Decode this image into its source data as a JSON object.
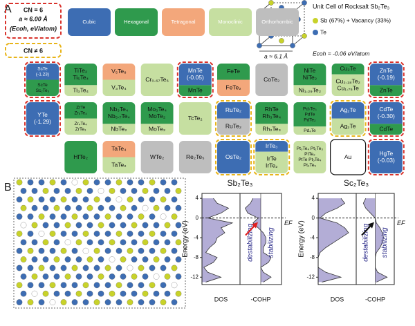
{
  "panel_a": {
    "label": "A",
    "key": {
      "cn6": [
        "CN = 6",
        "a ≈ 6.00 Å",
        "(Ecoh, eV/atom)"
      ],
      "cn_not6": "CN ≠ 6",
      "cn6_color": "#d9322b",
      "cn_not6_color": "#e8b418"
    },
    "structure_legend": [
      {
        "name": "Cubic",
        "color": "#3d6db3"
      },
      {
        "name": "Hexagonal",
        "color": "#2f9a4d"
      },
      {
        "name": "Tetragonal",
        "color": "#f3a77b"
      },
      {
        "name": "Monoclinic",
        "color": "#c6dfa1"
      },
      {
        "name": "Orthorhombic",
        "color": "#bebebe"
      }
    ],
    "unit_cell": {
      "title": "Unit Cell of Rocksalt Sb₂Te₃",
      "sb_label": "Sb (67%) + Vacancy (33%)",
      "sb_color": "#c8d22a",
      "te_label": "Te",
      "te_color": "#3d6db3",
      "lattice": "a ≈ 6.1 Å",
      "ecoh": "Ecoh = -0.06 eV/atom"
    },
    "rows": [
      [
        {
          "top": {
            "color": "#3d6db3",
            "lines": [
              "ScTe",
              "(-1.23)"
            ]
          },
          "bottom": {
            "color": "#2f9a4d",
            "lines": [
              "ScTe",
              "Sc₂Te₃"
            ]
          },
          "border": "#d9322b",
          "border_style": "dashed"
        },
        {
          "top": {
            "color": "#2f9a4d",
            "lines": [
              "TiTe₂",
              "Ti₅Te₄"
            ]
          },
          "bottom": {
            "color": "#c6dfa1",
            "lines": [
              "Ti₃Te₄"
            ]
          }
        },
        {
          "top": {
            "color": "#f3a77b",
            "lines": [
              "V₅Te₈"
            ]
          },
          "bottom": {
            "color": "#c6dfa1",
            "lines": [
              "V₃Te₄"
            ]
          }
        },
        {
          "top": {
            "color": "#c6dfa1",
            "lines": [
              "Cr₀.₆₇Te₆"
            ]
          }
        },
        {
          "top": {
            "color": "#3d6db3",
            "lines": [
              "MnTe",
              "(-0.05)"
            ]
          },
          "bottom": {
            "color": "#2f9a4d",
            "lines": [
              "MnTe"
            ]
          },
          "border": "#d9322b",
          "border_style": "dashed"
        },
        {
          "top": {
            "color": "#2f9a4d",
            "lines": [
              "FeTe"
            ]
          },
          "bottom": {
            "color": "#f3a77b",
            "lines": [
              "FeTe₂"
            ]
          }
        },
        {
          "top": {
            "color": "#bebebe",
            "lines": [
              "CoTe₂"
            ]
          }
        },
        {
          "top": {
            "color": "#2f9a4d",
            "lines": [
              "NiTe",
              "NiTe₂"
            ]
          },
          "bottom": {
            "color": "#c6dfa1",
            "lines": [
              "Ni₁.₂₉Te₂"
            ]
          }
        },
        {
          "top": {
            "color": "#2f9a4d",
            "lines": [
              "Cu₂Te"
            ]
          },
          "bottom": {
            "color": "#c6dfa1",
            "lines": [
              "Cu₃.₁₈Te₂",
              "Cu₁.₇₅Te"
            ]
          }
        },
        {
          "top": {
            "color": "#3d6db3",
            "lines": [
              "ZnTe",
              "(-0.19)"
            ]
          },
          "bottom": {
            "color": "#2f9a4d",
            "lines": [
              "ZnTe"
            ]
          },
          "border": "#d9322b",
          "border_style": "dashed"
        }
      ],
      [
        {
          "top": {
            "color": "#3d6db3",
            "lines": [
              "YTe",
              "(-1.29)"
            ]
          },
          "border": "#d9322b",
          "border_style": "dashed"
        },
        {
          "top": {
            "color": "#2f9a4d",
            "lines": [
              "ZrTe",
              "Zr₅Te₄"
            ]
          },
          "bottom": {
            "color": "#c6dfa1",
            "lines": [
              "Zr₄Te₄",
              "ZrTe₃"
            ]
          }
        },
        {
          "top": {
            "color": "#2f9a4d",
            "lines": [
              "Nb₃Te₄",
              "Nb₅.₇Te₄"
            ]
          },
          "bottom": {
            "color": "#c6dfa1",
            "lines": [
              "NbTe₂"
            ]
          }
        },
        {
          "top": {
            "color": "#2f9a4d",
            "lines": [
              "Mo₃Te₄",
              "MoTe₂"
            ]
          },
          "bottom": {
            "color": "#c6dfa1",
            "lines": [
              "MoTe₂"
            ]
          }
        },
        {
          "top": {
            "color": "#c6dfa1",
            "lines": [
              "TcTe₂"
            ]
          }
        },
        {
          "top": {
            "color": "#3d6db3",
            "lines": [
              "RuTe₂"
            ]
          },
          "bottom": {
            "color": "#bebebe",
            "lines": [
              "RuTe₂"
            ]
          },
          "border": "#e8b418",
          "border_style": "dashed"
        },
        {
          "top": {
            "color": "#2f9a4d",
            "lines": [
              "RhTe",
              "Rh₃Te₄"
            ]
          },
          "bottom": {
            "color": "#c6dfa1",
            "lines": [
              "Rh₂Te₃"
            ]
          }
        },
        {
          "top": {
            "color": "#2f9a4d",
            "lines": [
              "Pd₇Te₃",
              "PdTe",
              "PdTe₂"
            ]
          },
          "bottom": {
            "color": "#c6dfa1",
            "lines": [
              "Pd₄Te"
            ]
          }
        },
        {
          "top": {
            "color": "#3d6db3",
            "lines": [
              "Ag₂Te"
            ]
          },
          "bottom": {
            "color": "#c6dfa1",
            "lines": [
              "Ag₂Te"
            ]
          },
          "border": "#e8b418",
          "border_style": "dashed"
        },
        {
          "top": {
            "color": "#3d6db3",
            "lines": [
              "CdTe",
              "(-0.30)"
            ]
          },
          "bottom": {
            "color": "#2f9a4d",
            "lines": [
              "CdTe"
            ]
          },
          "border": "#d9322b",
          "border_style": "dashed"
        }
      ],
      [
        null,
        {
          "top": {
            "color": "#2f9a4d",
            "lines": [
              "HfTe₂"
            ]
          }
        },
        {
          "top": {
            "color": "#f3a77b",
            "lines": [
              "TaTe₄"
            ]
          },
          "bottom": {
            "color": "#c6dfa1",
            "lines": [
              "TaTe₂"
            ]
          }
        },
        {
          "top": {
            "color": "#bebebe",
            "lines": [
              "WTe₂"
            ]
          }
        },
        {
          "top": {
            "color": "#bebebe",
            "lines": [
              "Re₂Te₅"
            ]
          }
        },
        {
          "top": {
            "color": "#3d6db3",
            "lines": [
              "OsTe₂"
            ]
          },
          "border": "#e8b418",
          "border_style": "dashed"
        },
        {
          "top": {
            "color": "#3d6db3",
            "lines": [
              "IrTe₃"
            ]
          },
          "bottom": {
            "color": "#c6dfa1",
            "lines": [
              "IrTe",
              "IrTe₂"
            ]
          },
          "border": "#e8b418",
          "border_style": "dashed"
        },
        {
          "top": {
            "color": "#c6dfa1",
            "lines": [
              "Pt₃Te₄ Pt₂Te₃",
              "PtTe₂",
              "PtTe Pt₅Te₄",
              "Pt₄Te₅"
            ]
          }
        },
        {
          "top": {
            "color": "#ffffff",
            "lines": [
              "Au"
            ]
          },
          "border": "#111111",
          "border_style": "solid"
        },
        {
          "top": {
            "color": "#3d6db3",
            "lines": [
              "HgTe",
              "(-0.03)"
            ]
          },
          "border": "#d9322b",
          "border_style": "dashed"
        }
      ]
    ]
  },
  "panel_b": {
    "label": "B"
  },
  "chart_data": [
    {
      "type": "line",
      "title": "Sb₂Te₃",
      "ylabel": "Energy (eV)",
      "xlabels": [
        "DOS",
        "-COHP"
      ],
      "ef_label": "EF",
      "annotations": [
        "destabilizing",
        "stabilizing"
      ],
      "arrow_color": "#e02020",
      "ylim": [
        -13.5,
        5
      ],
      "yticks": [
        4,
        0,
        -4,
        -8,
        -12
      ],
      "dos_xlim": [
        0,
        1
      ],
      "cohp_xlim": [
        -0.8,
        0.8
      ],
      "x": [
        -13,
        -12,
        -11,
        -10,
        -9,
        -8,
        -7,
        -6,
        -5,
        -4,
        -3,
        -2,
        -1,
        0,
        1,
        2,
        3,
        4
      ],
      "dos": {
        "color": "#b3add6",
        "values": [
          0.1,
          0.5,
          0.15,
          0.05,
          0.3,
          0.4,
          0.1,
          0.2,
          0.35,
          0.4,
          0.6,
          0.5,
          0.8,
          0.15,
          0.5,
          0.7,
          0.4,
          0.3
        ]
      },
      "cohp": {
        "color": "#b3add6",
        "values": [
          0.1,
          0.4,
          0.1,
          0,
          0.3,
          0.4,
          0.1,
          0.1,
          0.2,
          0.2,
          0.1,
          -0.1,
          -0.3,
          -0.1,
          -0.5,
          -0.6,
          -0.4,
          -0.3
        ]
      }
    },
    {
      "type": "line",
      "title": "Sc₂Te₃",
      "ylabel": "Energy (eV)",
      "xlabels": [
        "DOS",
        "-COHP"
      ],
      "ef_label": "EF",
      "annotations": [
        "destabilizing",
        "stabilizing"
      ],
      "arrow_color": "#111111",
      "ylim": [
        -13.5,
        5
      ],
      "yticks": [
        4,
        0,
        -4,
        -8,
        -12
      ],
      "dos_xlim": [
        0,
        1
      ],
      "cohp_xlim": [
        -0.8,
        0.8
      ],
      "x": [
        -13,
        -12,
        -11,
        -10,
        -9,
        -8,
        -7,
        -6,
        -5,
        -4,
        -3,
        -2,
        -1,
        0,
        1,
        2,
        3,
        4
      ],
      "dos": {
        "color": "#b3add6",
        "values": [
          0.1,
          0.6,
          0.2,
          0,
          0,
          0,
          0.05,
          0.2,
          0.4,
          0.6,
          0.8,
          0.7,
          0.5,
          0.05,
          0.2,
          0.5,
          0.7,
          0.6
        ]
      },
      "cohp": {
        "color": "#b3add6",
        "values": [
          0.05,
          0.5,
          0.1,
          0,
          0,
          0,
          0.05,
          0.2,
          0.3,
          0.35,
          0.3,
          0.2,
          0.05,
          0,
          -0.2,
          -0.4,
          -0.5,
          -0.4
        ]
      }
    }
  ]
}
